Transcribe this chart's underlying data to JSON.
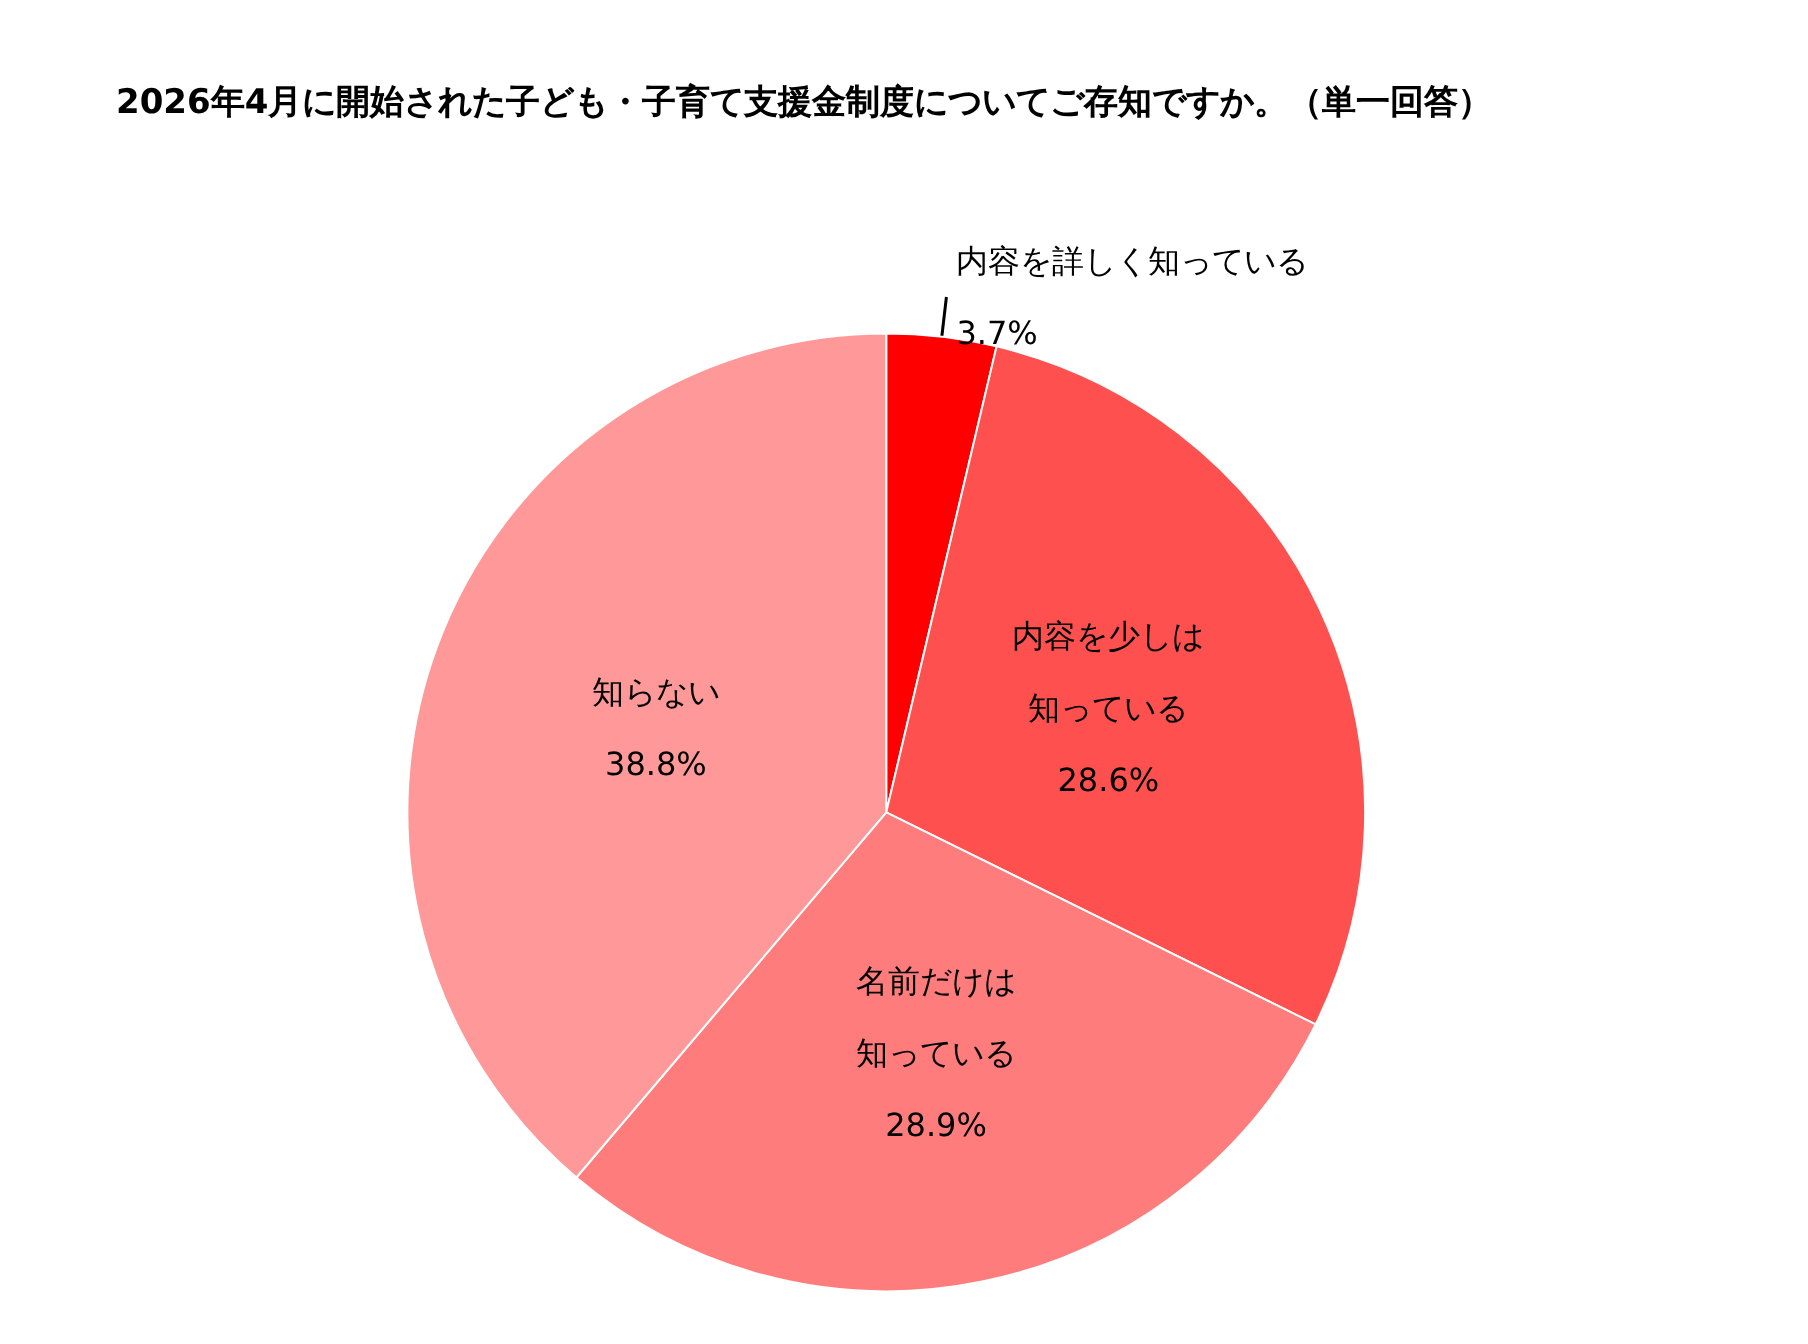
{
  "chart_data": {
    "type": "pie",
    "title": "2026年4月に開始された子ども・子育て支援金制度についてご存知ですか。（単一回答）",
    "categories": [
      "内容を詳しく知っている",
      "内容を少しは知っている",
      "名前だけは知っている",
      "知らない"
    ],
    "values": [
      3.7,
      28.6,
      28.9,
      38.8
    ],
    "colors": [
      "#ff0000",
      "#ff5050",
      "#ff7c7c",
      "#ff9999"
    ],
    "value_labels": [
      "3.7%",
      "28.6%",
      "28.9%",
      "38.8%"
    ],
    "legend": false
  }
}
